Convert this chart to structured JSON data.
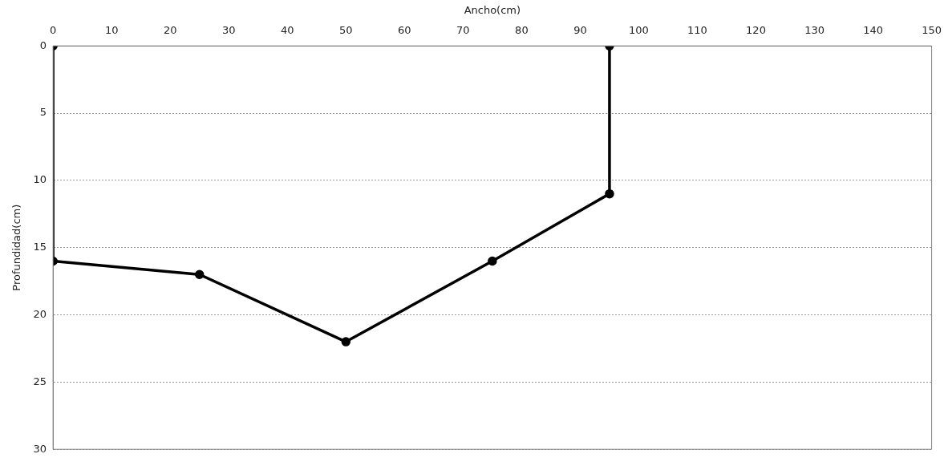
{
  "chart_data": {
    "type": "line",
    "xlabel": "Ancho(cm)",
    "ylabel": "Profundidad(cm)",
    "series": [
      {
        "color": "#000000",
        "x": [
          0,
          0,
          25,
          50,
          75,
          95,
          95
        ],
        "values": [
          0,
          16,
          17,
          22,
          16,
          11,
          0
        ]
      }
    ],
    "xlim": [
      0,
      150
    ],
    "xticks": [
      0,
      10,
      20,
      30,
      40,
      50,
      60,
      70,
      80,
      90,
      100,
      110,
      120,
      130,
      140,
      150
    ],
    "ylim": [
      30,
      0
    ],
    "yticks": [
      0,
      5,
      10,
      15,
      20,
      25,
      30
    ],
    "grid": "y",
    "legend": false,
    "marker": "circle",
    "line_style": "solid"
  }
}
